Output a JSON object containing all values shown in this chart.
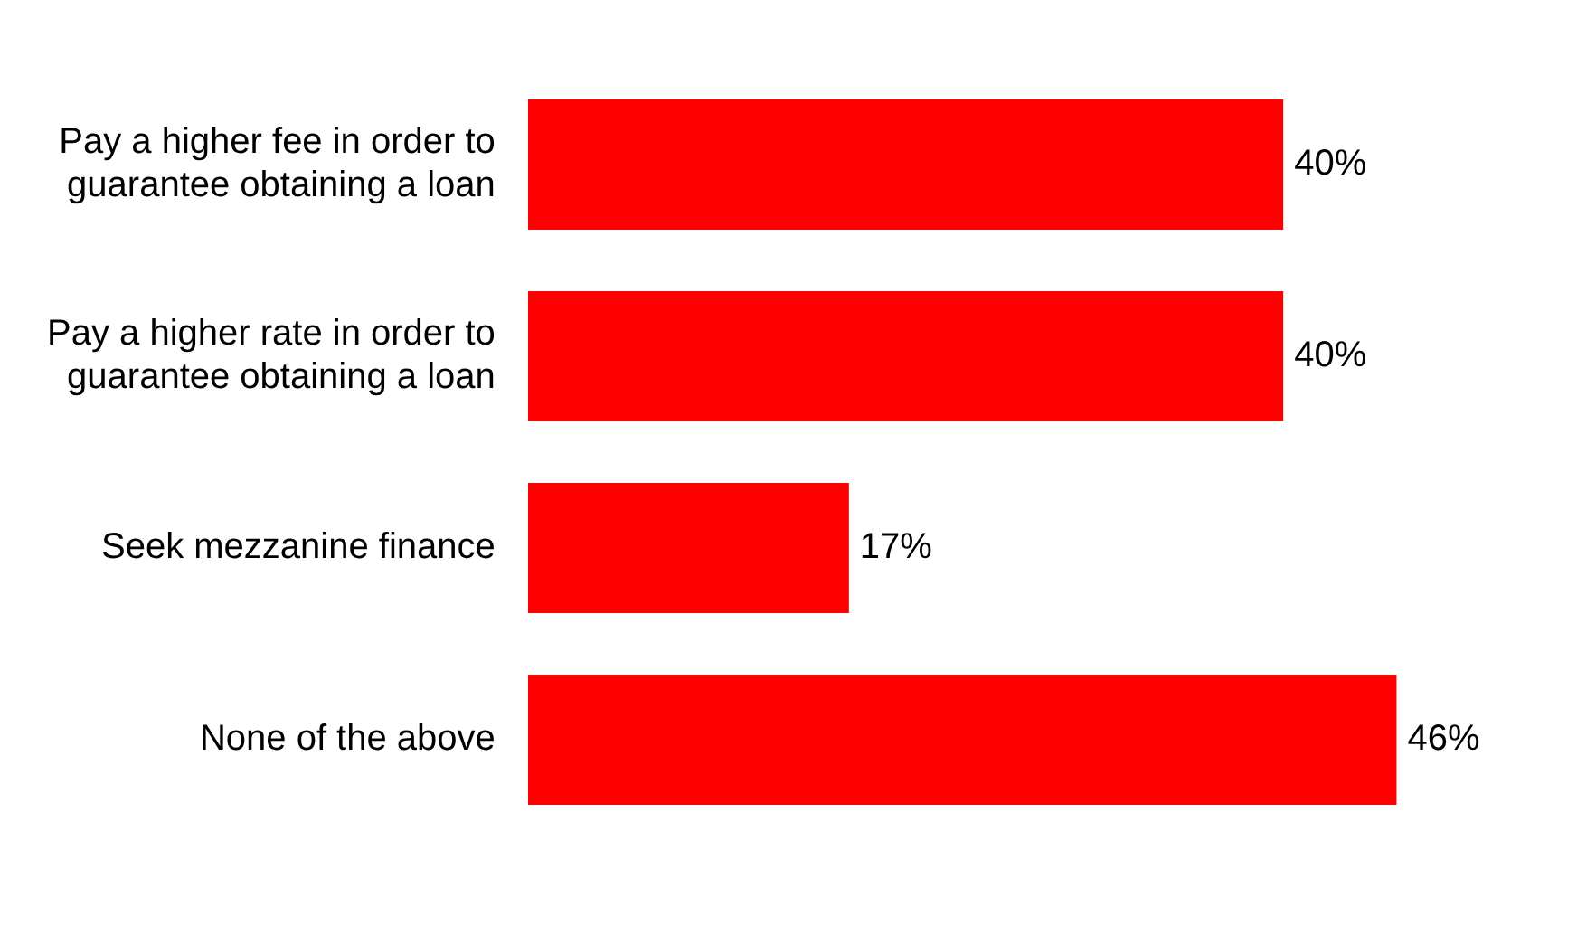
{
  "chart_data": {
    "type": "bar",
    "orientation": "horizontal",
    "categories": [
      "Pay a higher fee in order to guarantee obtaining a loan",
      "Pay a higher rate in order to guarantee obtaining a loan",
      "Seek mezzanine finance",
      "None of the above"
    ],
    "values": [
      40,
      40,
      17,
      46
    ],
    "color": "#ff0000",
    "value_labels": [
      "40%",
      "40%",
      "17%",
      "46%"
    ]
  }
}
